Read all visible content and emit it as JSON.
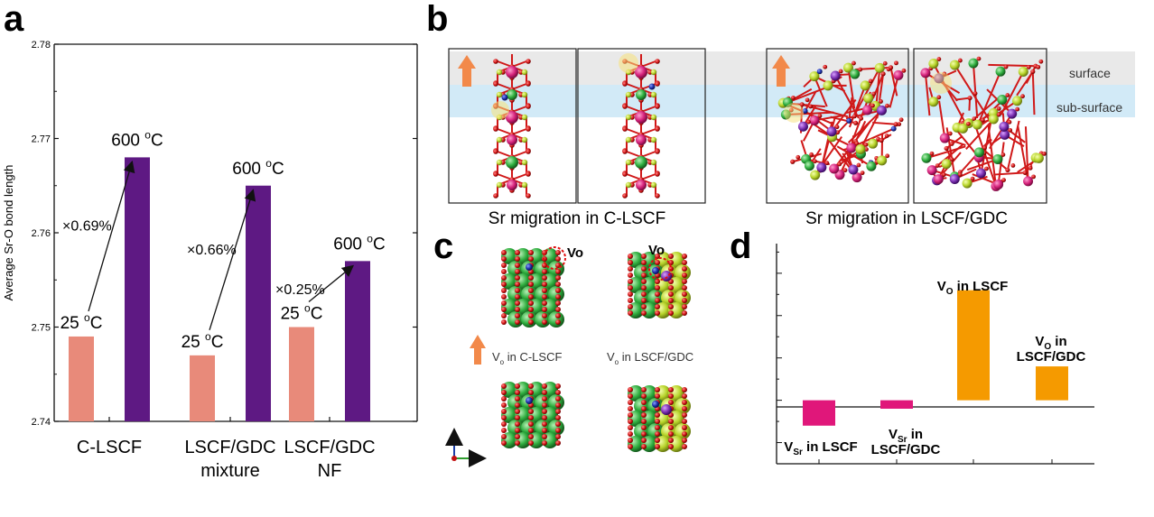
{
  "panels": {
    "a": {
      "letter": "a",
      "chart_data": {
        "type": "bar",
        "ylabel": "Average Sr-O bond length",
        "ylim": [
          2.74,
          2.78
        ],
        "yticks": [
          "2.74",
          "2.75",
          "2.76",
          "2.77",
          "2.78"
        ],
        "categories": [
          "C-LSCF",
          "LSCF/GDC mixture",
          "LSCF/GDC NF"
        ],
        "category_lines": [
          [
            "C-LSCF"
          ],
          [
            "LSCF/GDC",
            "mixture"
          ],
          [
            "LSCF/GDC",
            "NF"
          ]
        ],
        "series": [
          {
            "temp_label": "25 oC",
            "color": "#e88a7a",
            "values": [
              2.749,
              2.747,
              2.75
            ]
          },
          {
            "temp_label": "600 oC",
            "color": "#5e1983",
            "values": [
              2.768,
              2.765,
              2.757
            ]
          }
        ],
        "increase_labels": [
          "×0.69%",
          "×0.66%",
          "×0.25%"
        ]
      }
    },
    "b": {
      "letter": "b",
      "layer_labels": {
        "surface": "surface",
        "subsurface": "sub-surface"
      },
      "captions": [
        "Sr migration in C-LSCF",
        "Sr migration in LSCF/GDC"
      ]
    },
    "c": {
      "letter": "c",
      "vacancy_label": "Vo",
      "captions": [
        "V",
        "o",
        " in C-LSCF",
        " in LSCF/GDC"
      ]
    },
    "d": {
      "letter": "d",
      "chart_data": {
        "type": "bar",
        "series": [
          {
            "label_main": "V",
            "label_sub": "Sr",
            "label_rest": " in LSCF",
            "color": "#e0177a",
            "value": -0.6
          },
          {
            "label_main": "V",
            "label_sub": "Sr",
            "label_rest": " in",
            "label_rest2": "LSCF/GDC",
            "color": "#e0177a",
            "value": -0.2
          },
          {
            "label_main": "V",
            "label_sub": "O",
            "label_rest": " in LSCF",
            "color": "#f59a00",
            "value": 2.6
          },
          {
            "label_main": "V",
            "label_sub": "O",
            "label_rest": " in",
            "label_rest2": "LSCF/GDC",
            "color": "#f59a00",
            "value": 0.8
          }
        ],
        "ylim": [
          -1.5,
          3.7
        ]
      }
    }
  }
}
